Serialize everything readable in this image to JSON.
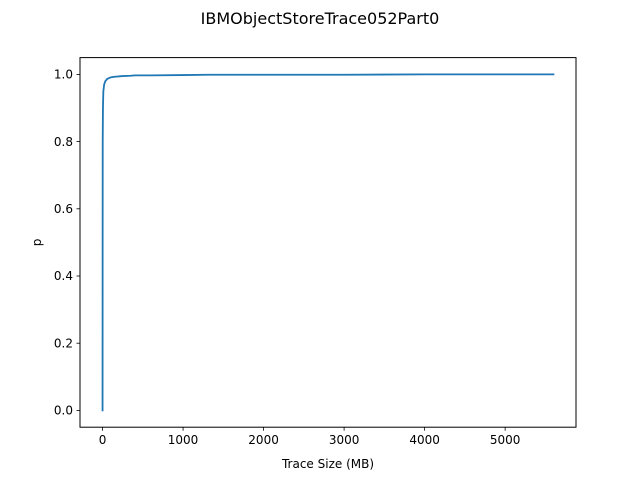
{
  "chart_data": {
    "type": "line",
    "title": "IBMObjectStoreTrace052Part0",
    "xlabel": "Trace Size (MB)",
    "ylabel": "p",
    "xlim": [
      -280,
      5880
    ],
    "ylim": [
      -0.05,
      1.05
    ],
    "xticks": [
      0,
      1000,
      2000,
      3000,
      4000,
      5000
    ],
    "yticks": [
      0.0,
      0.2,
      0.4,
      0.6,
      0.8,
      1.0
    ],
    "xtick_labels": [
      "0",
      "1000",
      "2000",
      "3000",
      "4000",
      "5000"
    ],
    "ytick_labels": [
      "0.0",
      "0.2",
      "0.4",
      "0.6",
      "0.8",
      "1.0"
    ],
    "grid": false,
    "series": [
      {
        "color": "#1f77b4",
        "x": [
          0,
          1,
          2,
          5,
          10,
          20,
          35,
          60,
          100,
          150,
          250,
          350,
          400,
          600,
          1000,
          1300,
          2000,
          3000,
          4000,
          5000,
          5600
        ],
        "y": [
          0.0,
          0.5,
          0.8,
          0.9,
          0.95,
          0.97,
          0.98,
          0.987,
          0.991,
          0.993,
          0.995,
          0.996,
          0.997,
          0.997,
          0.998,
          0.999,
          0.999,
          0.999,
          1.0,
          1.0,
          1.0
        ]
      }
    ]
  }
}
